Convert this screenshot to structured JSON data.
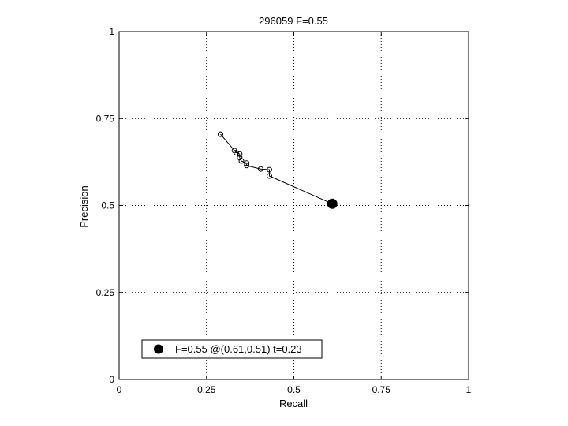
{
  "chart_data": {
    "type": "line",
    "title": "296059 F=0.55",
    "xlabel": "Recall",
    "ylabel": "Precision",
    "xlim": [
      0,
      1
    ],
    "ylim": [
      0,
      1
    ],
    "xticks": [
      0,
      0.25,
      0.5,
      0.75,
      1
    ],
    "xtick_labels": [
      "0",
      "0.25",
      "0.5",
      "0.75",
      "1"
    ],
    "yticks": [
      0,
      0.25,
      0.5,
      0.75,
      1
    ],
    "ytick_labels": [
      "0",
      "0.25",
      "0.5",
      "0.75",
      "1"
    ],
    "grid": true,
    "legend_position": "bottom-left",
    "series": [
      {
        "marker": "open-circle",
        "color": "#000000",
        "x": [
          0.29,
          0.33,
          0.335,
          0.345,
          0.345,
          0.35,
          0.365,
          0.365,
          0.405,
          0.43,
          0.43,
          0.61
        ],
        "y": [
          0.705,
          0.658,
          0.652,
          0.648,
          0.638,
          0.628,
          0.622,
          0.615,
          0.605,
          0.603,
          0.585,
          0.505
        ]
      }
    ],
    "highlight": {
      "x": 0.61,
      "y": 0.505,
      "marker": "filled-circle",
      "label": "F=0.55 @(0.61,0.51) t=0.23"
    }
  }
}
